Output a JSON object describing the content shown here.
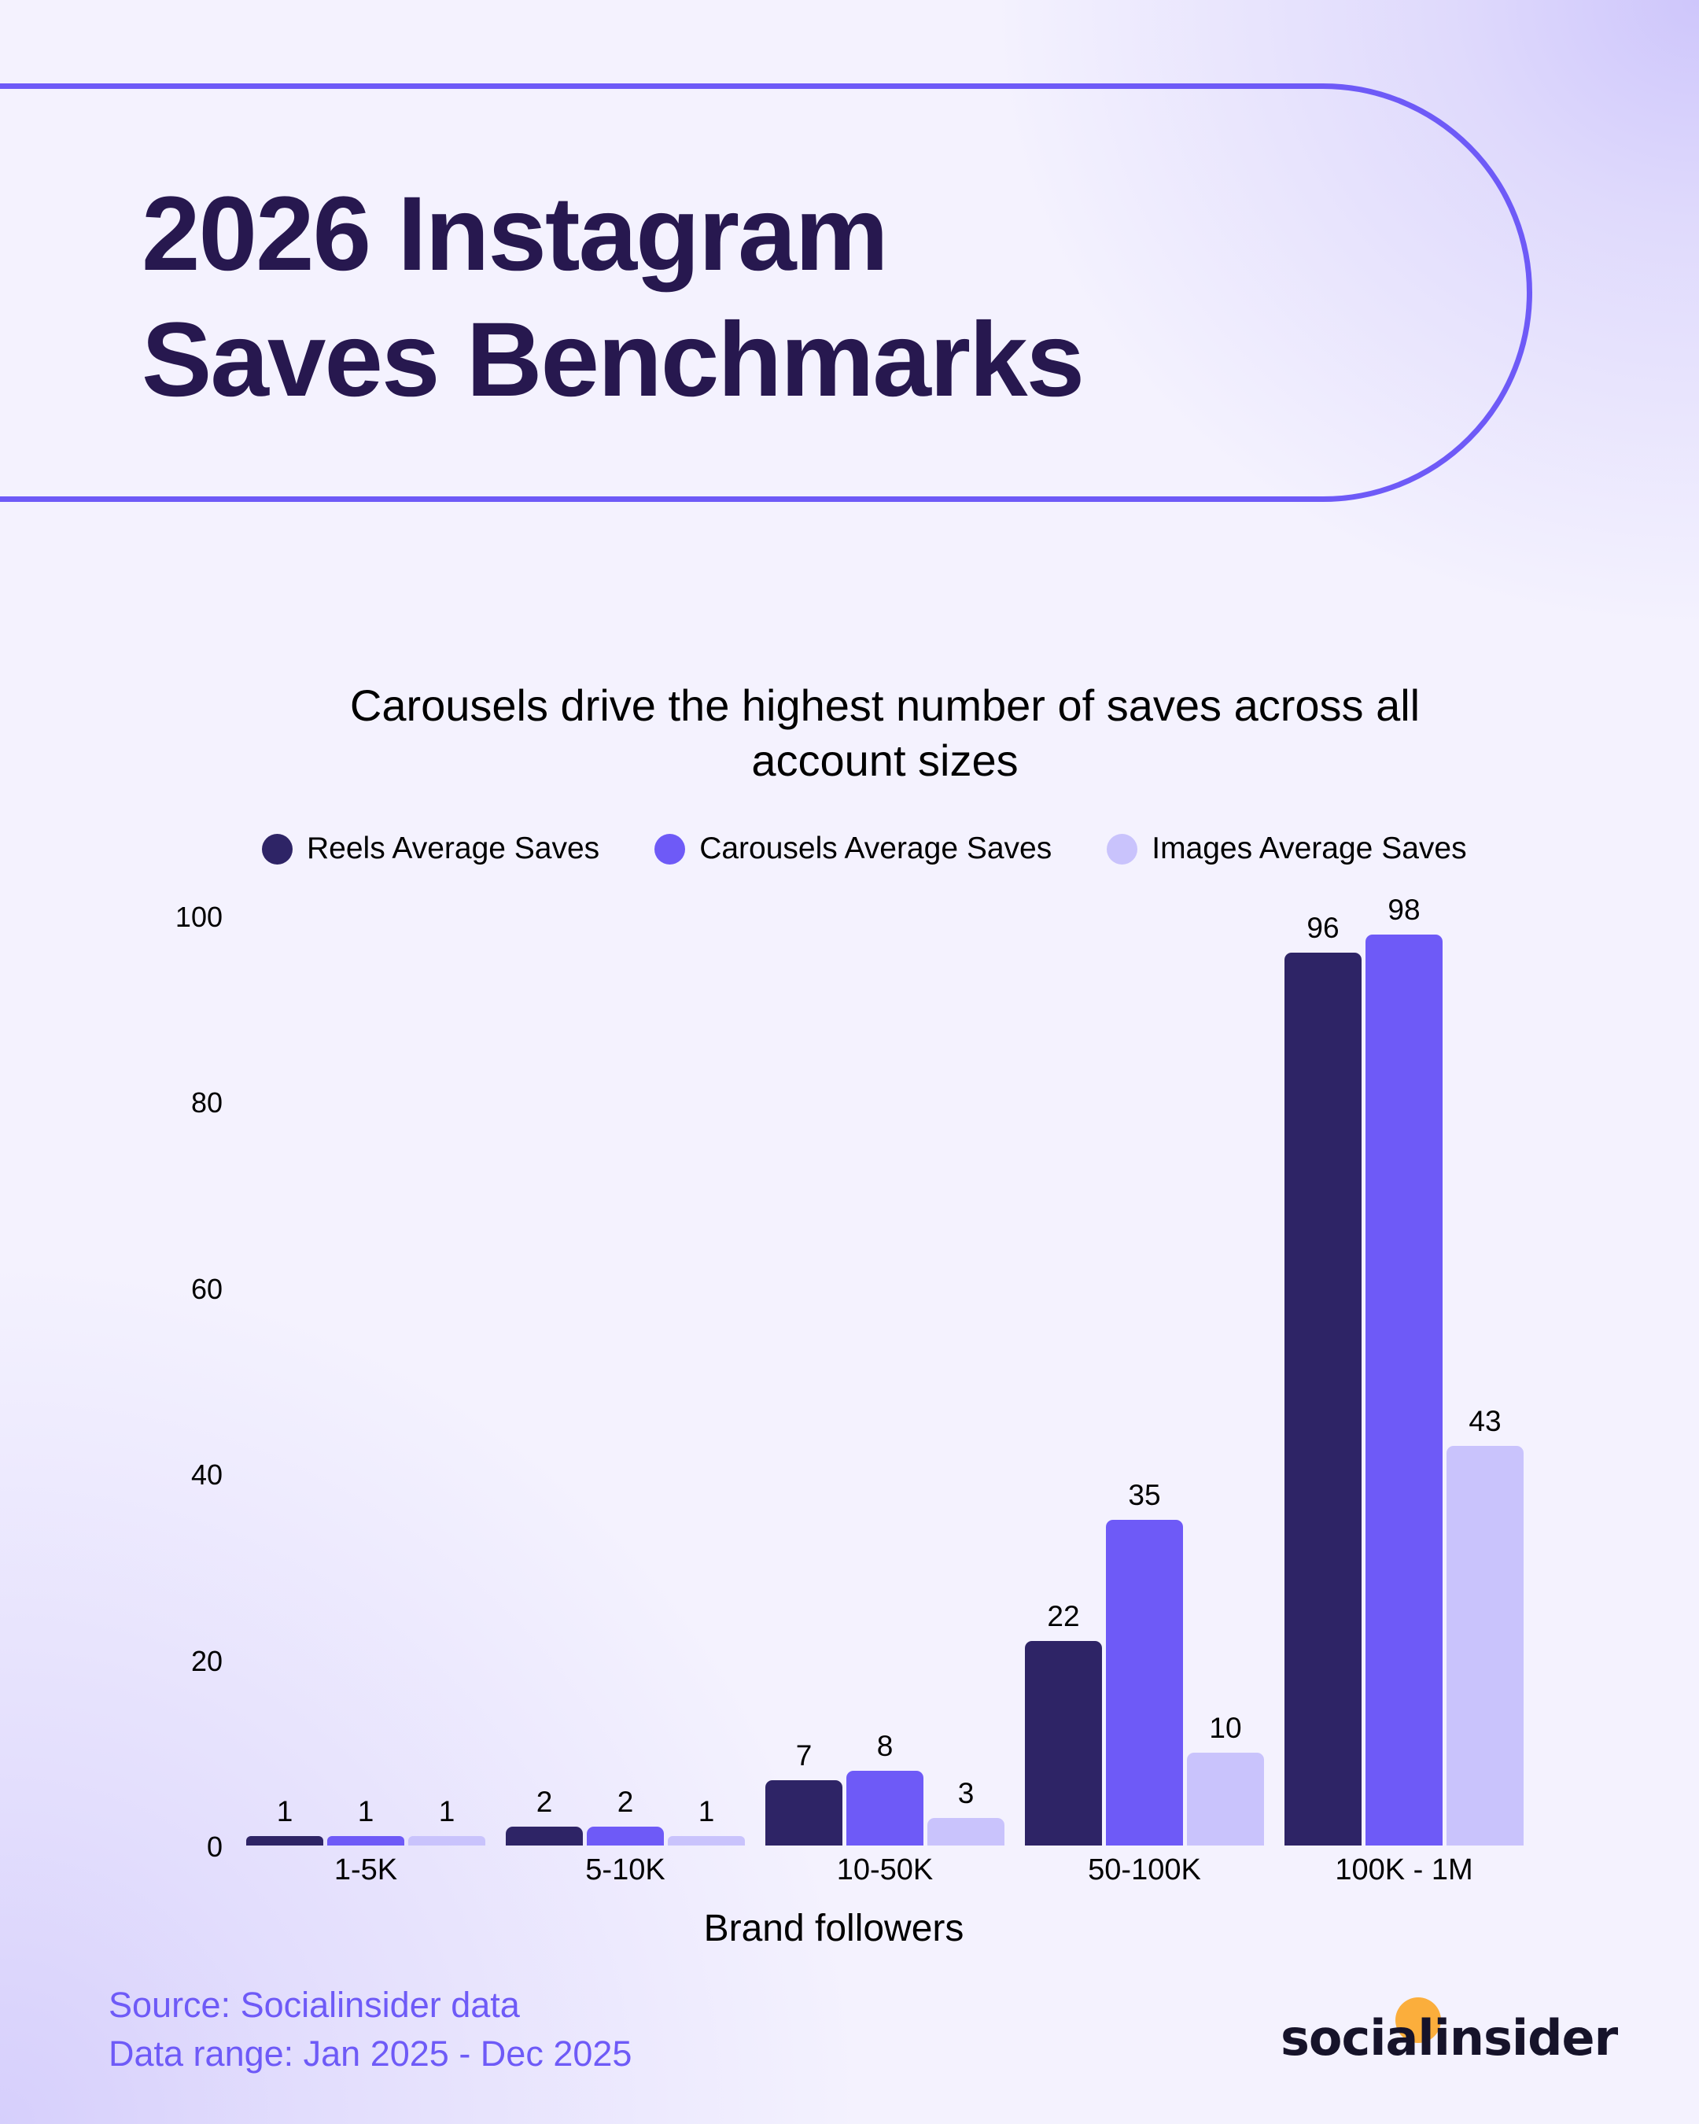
{
  "header": {
    "title_line1": "2026 Instagram",
    "title_line2": "Saves Benchmarks"
  },
  "colors": {
    "accent": "#6E5AF7",
    "title": "#27184F",
    "reels": "#2E2466",
    "carousels": "#6E5AF7",
    "images": "#C9C3FC",
    "logo_dot": "#FBAE3C"
  },
  "chart_data": {
    "type": "bar",
    "title": "Carousels drive the highest number of saves across all account sizes",
    "title_line1": "Carousels drive the highest number of saves across all",
    "title_line2": "account sizes",
    "xlabel": "Brand followers",
    "ylabel": "",
    "ylim": [
      0,
      100
    ],
    "yticks": [
      "100",
      "80",
      "60",
      "40",
      "20",
      "0"
    ],
    "grid": false,
    "legend_position": "top",
    "categories": [
      "1-5K",
      "5-10K",
      "10-50K",
      "50-100K",
      "100K - 1M"
    ],
    "series": [
      {
        "name": "Reels Average Saves",
        "color": "#2E2466",
        "values": [
          1,
          2,
          7,
          22,
          96
        ]
      },
      {
        "name": "Carousels Average Saves",
        "color": "#6E5AF7",
        "values": [
          1,
          2,
          8,
          35,
          98
        ]
      },
      {
        "name": "Images Average Saves",
        "color": "#C9C3FC",
        "values": [
          1,
          1,
          3,
          10,
          43
        ]
      }
    ]
  },
  "footer": {
    "source": "Source: Socialinsider data",
    "range": "Data range: Jan 2025 - Dec 2025",
    "logo_text": "socialinsider"
  }
}
